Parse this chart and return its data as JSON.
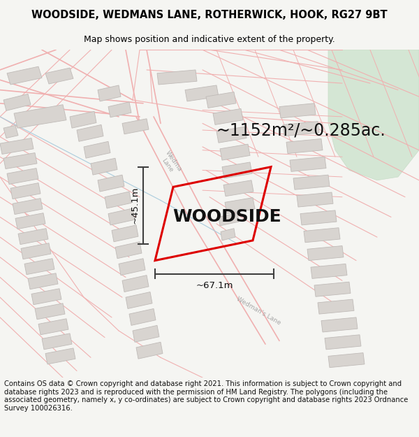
{
  "title": "WOODSIDE, WEDMANS LANE, ROTHERWICK, HOOK, RG27 9BT",
  "subtitle": "Map shows position and indicative extent of the property.",
  "property_label": "WOODSIDE",
  "area_label": "~1152m²/~0.285ac.",
  "width_label": "~67.1m",
  "height_label": "~45.1m",
  "footer": "Contains OS data © Crown copyright and database right 2021. This information is subject to Crown copyright and database rights 2023 and is reproduced with the permission of HM Land Registry. The polygons (including the associated geometry, namely x, y co-ordinates) are subject to Crown copyright and database rights 2023 Ordnance Survey 100026316.",
  "bg_color": "#f5f5f2",
  "map_bg": "#ffffff",
  "road_line_color": "#f0b0b0",
  "road_line_color2": "#e8a0a0",
  "building_color": "#d8d4d0",
  "building_edge": "#c0bbb8",
  "green_area": "#d4e6d4",
  "green_edge": "#c8dcc8",
  "property_outline_color": "#dd0000",
  "dim_line_color": "#404040",
  "road_label_color": "#a8a8a8",
  "blue_line_color": "#aaccdd",
  "title_fontsize": 10.5,
  "subtitle_fontsize": 9,
  "label_fontsize": 18,
  "area_fontsize": 17,
  "dim_fontsize": 9.5,
  "footer_fontsize": 7.2,
  "fig_width": 6.0,
  "fig_height": 6.25
}
